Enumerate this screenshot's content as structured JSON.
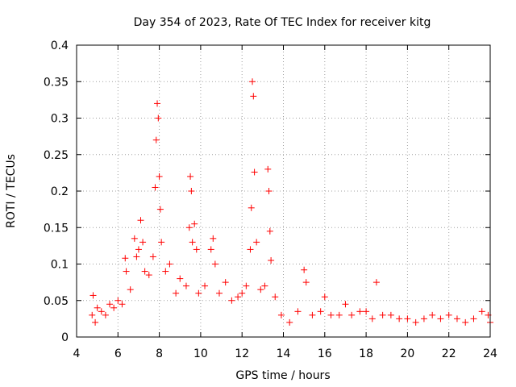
{
  "chart_data": {
    "type": "scatter",
    "title": "Day 354 of 2023, Rate Of TEC Index for receiver kitg",
    "xlabel": "GPS time / hours",
    "ylabel": "ROTI / TECUs",
    "xlim": [
      4,
      24
    ],
    "ylim": [
      0,
      0.4
    ],
    "xticks": [
      4,
      6,
      8,
      10,
      12,
      14,
      16,
      18,
      20,
      22,
      24
    ],
    "xtick_labels": [
      "4",
      "6",
      "8",
      "10",
      "12",
      "14",
      "16",
      "18",
      "20",
      "22",
      "24"
    ],
    "yticks": [
      0,
      0.05,
      0.1,
      0.15,
      0.2,
      0.25,
      0.3,
      0.35,
      0.4
    ],
    "ytick_labels": [
      "0",
      "0.05",
      "0.1",
      "0.15",
      "0.2",
      "0.25",
      "0.3",
      "0.35",
      "0.4"
    ],
    "grid": true,
    "marker": "+",
    "marker_color": "#ff0000",
    "series": [
      {
        "name": "ROTI",
        "x": [
          4.75,
          4.8,
          4.9,
          5.0,
          5.2,
          5.4,
          5.6,
          5.8,
          6.0,
          6.2,
          6.35,
          6.4,
          6.6,
          6.8,
          6.9,
          7.0,
          7.1,
          7.2,
          7.3,
          7.5,
          7.7,
          7.8,
          7.85,
          7.9,
          7.95,
          8.0,
          8.05,
          8.1,
          8.3,
          8.5,
          8.8,
          9.0,
          9.3,
          9.45,
          9.5,
          9.55,
          9.6,
          9.7,
          9.8,
          9.9,
          10.2,
          10.5,
          10.6,
          10.7,
          10.9,
          11.2,
          11.5,
          11.8,
          12.0,
          12.2,
          12.4,
          12.45,
          12.5,
          12.55,
          12.6,
          12.7,
          12.9,
          13.1,
          13.25,
          13.3,
          13.35,
          13.4,
          13.6,
          13.9,
          14.3,
          14.7,
          15.0,
          15.1,
          15.4,
          15.8,
          16.0,
          16.3,
          16.7,
          17.0,
          17.3,
          17.7,
          18.0,
          18.3,
          18.5,
          18.8,
          19.2,
          19.6,
          20.0,
          20.4,
          20.8,
          21.2,
          21.6,
          22.0,
          22.4,
          22.8,
          23.2,
          23.6,
          23.9,
          24.0
        ],
        "y": [
          0.03,
          0.057,
          0.02,
          0.04,
          0.035,
          0.03,
          0.045,
          0.04,
          0.05,
          0.045,
          0.108,
          0.09,
          0.065,
          0.135,
          0.11,
          0.12,
          0.16,
          0.13,
          0.09,
          0.085,
          0.11,
          0.205,
          0.27,
          0.32,
          0.3,
          0.22,
          0.175,
          0.13,
          0.09,
          0.1,
          0.06,
          0.08,
          0.07,
          0.15,
          0.22,
          0.2,
          0.13,
          0.155,
          0.12,
          0.06,
          0.07,
          0.12,
          0.135,
          0.1,
          0.06,
          0.075,
          0.05,
          0.055,
          0.06,
          0.07,
          0.12,
          0.177,
          0.35,
          0.33,
          0.226,
          0.13,
          0.065,
          0.07,
          0.23,
          0.2,
          0.145,
          0.105,
          0.055,
          0.03,
          0.02,
          0.035,
          0.092,
          0.075,
          0.03,
          0.035,
          0.055,
          0.03,
          0.03,
          0.045,
          0.03,
          0.035,
          0.035,
          0.025,
          0.075,
          0.03,
          0.03,
          0.025,
          0.025,
          0.02,
          0.025,
          0.03,
          0.025,
          0.03,
          0.025,
          0.02,
          0.025,
          0.035,
          0.03,
          0.02
        ]
      }
    ]
  }
}
